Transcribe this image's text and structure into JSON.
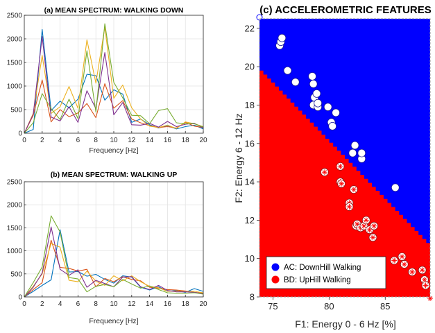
{
  "chart_data": [
    {
      "type": "line",
      "title": "(a) MEAN SPECTRUM: WALKING DOWN",
      "xlabel": "Frequency [Hz]",
      "ylabel": "",
      "xlim": [
        0,
        20
      ],
      "ylim": [
        0,
        2500
      ],
      "xticks": [
        "0",
        "2",
        "4",
        "6",
        "8",
        "10",
        "12",
        "14",
        "16",
        "18",
        "20"
      ],
      "yticks": [
        "0",
        "500",
        "1000",
        "1500",
        "2000",
        "2500"
      ],
      "grid": true,
      "x": [
        0,
        1,
        2,
        3,
        4,
        5,
        6,
        7,
        8,
        9,
        10,
        11,
        12,
        13,
        14,
        15,
        16,
        17,
        18,
        19,
        20
      ],
      "series": [
        {
          "color": "#0072BD",
          "values": [
            0,
            80,
            2200,
            480,
            680,
            540,
            720,
            1250,
            1220,
            700,
            920,
            830,
            230,
            300,
            180,
            110,
            160,
            90,
            140,
            170,
            90
          ]
        },
        {
          "color": "#D95319",
          "values": [
            0,
            380,
            1130,
            240,
            500,
            350,
            430,
            630,
            330,
            1050,
            530,
            690,
            300,
            220,
            160,
            120,
            140,
            110,
            230,
            150,
            120
          ]
        },
        {
          "color": "#EDB120",
          "values": [
            0,
            420,
            1650,
            420,
            560,
            990,
            530,
            1980,
            1060,
            2250,
            740,
            1020,
            540,
            300,
            150,
            120,
            170,
            100,
            240,
            200,
            140
          ]
        },
        {
          "color": "#7E2F8E",
          "values": [
            0,
            400,
            2050,
            340,
            260,
            560,
            230,
            900,
            520,
            1710,
            390,
            650,
            180,
            170,
            210,
            130,
            250,
            140,
            190,
            210,
            110
          ]
        },
        {
          "color": "#77AC30",
          "values": [
            0,
            220,
            840,
            520,
            290,
            720,
            310,
            1750,
            450,
            2320,
            1080,
            750,
            380,
            370,
            200,
            480,
            520,
            220,
            200,
            200,
            130
          ]
        }
      ]
    },
    {
      "type": "line",
      "title": "(b) MEAN SPECTRUM: WALKING UP",
      "xlabel": "Frequency [Hz]",
      "ylabel": "",
      "xlim": [
        0,
        20
      ],
      "ylim": [
        0,
        2500
      ],
      "xticks": [
        "0",
        "2",
        "4",
        "6",
        "8",
        "10",
        "12",
        "14",
        "16",
        "18",
        "20"
      ],
      "yticks": [
        "0",
        "500",
        "1000",
        "1500",
        "2000",
        "2500"
      ],
      "grid": true,
      "x": [
        0,
        1,
        2,
        3,
        4,
        5,
        6,
        7,
        8,
        9,
        10,
        11,
        12,
        13,
        14,
        15,
        16,
        17,
        18,
        19,
        20
      ],
      "series": [
        {
          "color": "#0072BD",
          "values": [
            0,
            120,
            250,
            370,
            1460,
            540,
            550,
            450,
            490,
            380,
            300,
            460,
            430,
            210,
            150,
            220,
            120,
            140,
            100,
            180,
            120
          ]
        },
        {
          "color": "#D95319",
          "values": [
            0,
            160,
            310,
            1230,
            640,
            620,
            560,
            600,
            220,
            400,
            330,
            440,
            380,
            350,
            210,
            190,
            160,
            150,
            130,
            100,
            80
          ]
        },
        {
          "color": "#EDB120",
          "values": [
            0,
            230,
            500,
            1160,
            1080,
            360,
            330,
            560,
            340,
            250,
            460,
            350,
            460,
            330,
            230,
            200,
            120,
            130,
            120,
            120,
            90
          ]
        },
        {
          "color": "#7E2F8E",
          "values": [
            0,
            210,
            520,
            1520,
            600,
            470,
            590,
            210,
            360,
            290,
            220,
            430,
            440,
            220,
            160,
            250,
            140,
            110,
            110,
            100,
            70
          ]
        },
        {
          "color": "#77AC30",
          "values": [
            0,
            310,
            650,
            1760,
            1410,
            420,
            390,
            110,
            230,
            270,
            220,
            380,
            280,
            190,
            240,
            160,
            90,
            80,
            80,
            90,
            60
          ]
        }
      ]
    },
    {
      "type": "scatter",
      "title": "(c) ACCELEROMETRIC FEATURES",
      "xlabel": "F1: Energy 0 - 6 Hz [%]",
      "ylabel": "F2: Energy 6 - 12 Hz",
      "xlim": [
        73.8,
        89
      ],
      "ylim": [
        8,
        22.5
      ],
      "xticks": [
        "75",
        "80",
        "85"
      ],
      "yticks": [
        "8",
        "10",
        "12",
        "14",
        "16",
        "18",
        "20",
        "22"
      ],
      "grid": false,
      "regions": [
        {
          "name": "AC",
          "color": "#0000FF"
        },
        {
          "name": "BD",
          "color": "#FF0000"
        }
      ],
      "boundary": {
        "x": [
          73.8,
          89
        ],
        "y": [
          19.8,
          10.6
        ]
      },
      "legend_placement": "bottom-left",
      "series": [
        {
          "name": "AC: DownHill Walking",
          "color": "#0000FF",
          "points": [
            [
              75.6,
              21.1
            ],
            [
              75.7,
              21.3
            ],
            [
              75.8,
              21.5
            ],
            [
              76.3,
              19.8
            ],
            [
              77.0,
              19.2
            ],
            [
              78.5,
              19.5
            ],
            [
              78.6,
              19.1
            ],
            [
              78.7,
              18.4
            ],
            [
              78.9,
              18.6
            ],
            [
              78.6,
              18.0
            ],
            [
              79.0,
              17.9
            ],
            [
              79.0,
              18.1
            ],
            [
              79.9,
              17.9
            ],
            [
              80.2,
              17.1
            ],
            [
              80.3,
              16.9
            ],
            [
              80.6,
              17.6
            ],
            [
              82.1,
              15.5
            ],
            [
              82.3,
              15.9
            ],
            [
              82.9,
              15.2
            ],
            [
              82.9,
              15.5
            ],
            [
              85.9,
              13.7
            ]
          ]
        },
        {
          "name": "BD: UpHill Walking",
          "color": "#FF0000",
          "points": [
            [
              79.6,
              14.5
            ],
            [
              81.0,
              14.8
            ],
            [
              81.0,
              14.0
            ],
            [
              81.1,
              13.9
            ],
            [
              81.8,
              12.9
            ],
            [
              81.8,
              12.7
            ],
            [
              82.2,
              13.6
            ],
            [
              82.4,
              11.7
            ],
            [
              82.5,
              11.8
            ],
            [
              82.8,
              11.6
            ],
            [
              83.1,
              11.7
            ],
            [
              83.3,
              12.0
            ],
            [
              83.6,
              11.5
            ],
            [
              83.9,
              11.1
            ],
            [
              84.0,
              11.7
            ],
            [
              85.8,
              9.9
            ],
            [
              86.5,
              10.1
            ],
            [
              86.7,
              9.7
            ],
            [
              87.4,
              9.3
            ],
            [
              88.3,
              9.4
            ],
            [
              88.5,
              8.9
            ],
            [
              88.6,
              8.6
            ]
          ]
        }
      ]
    }
  ]
}
